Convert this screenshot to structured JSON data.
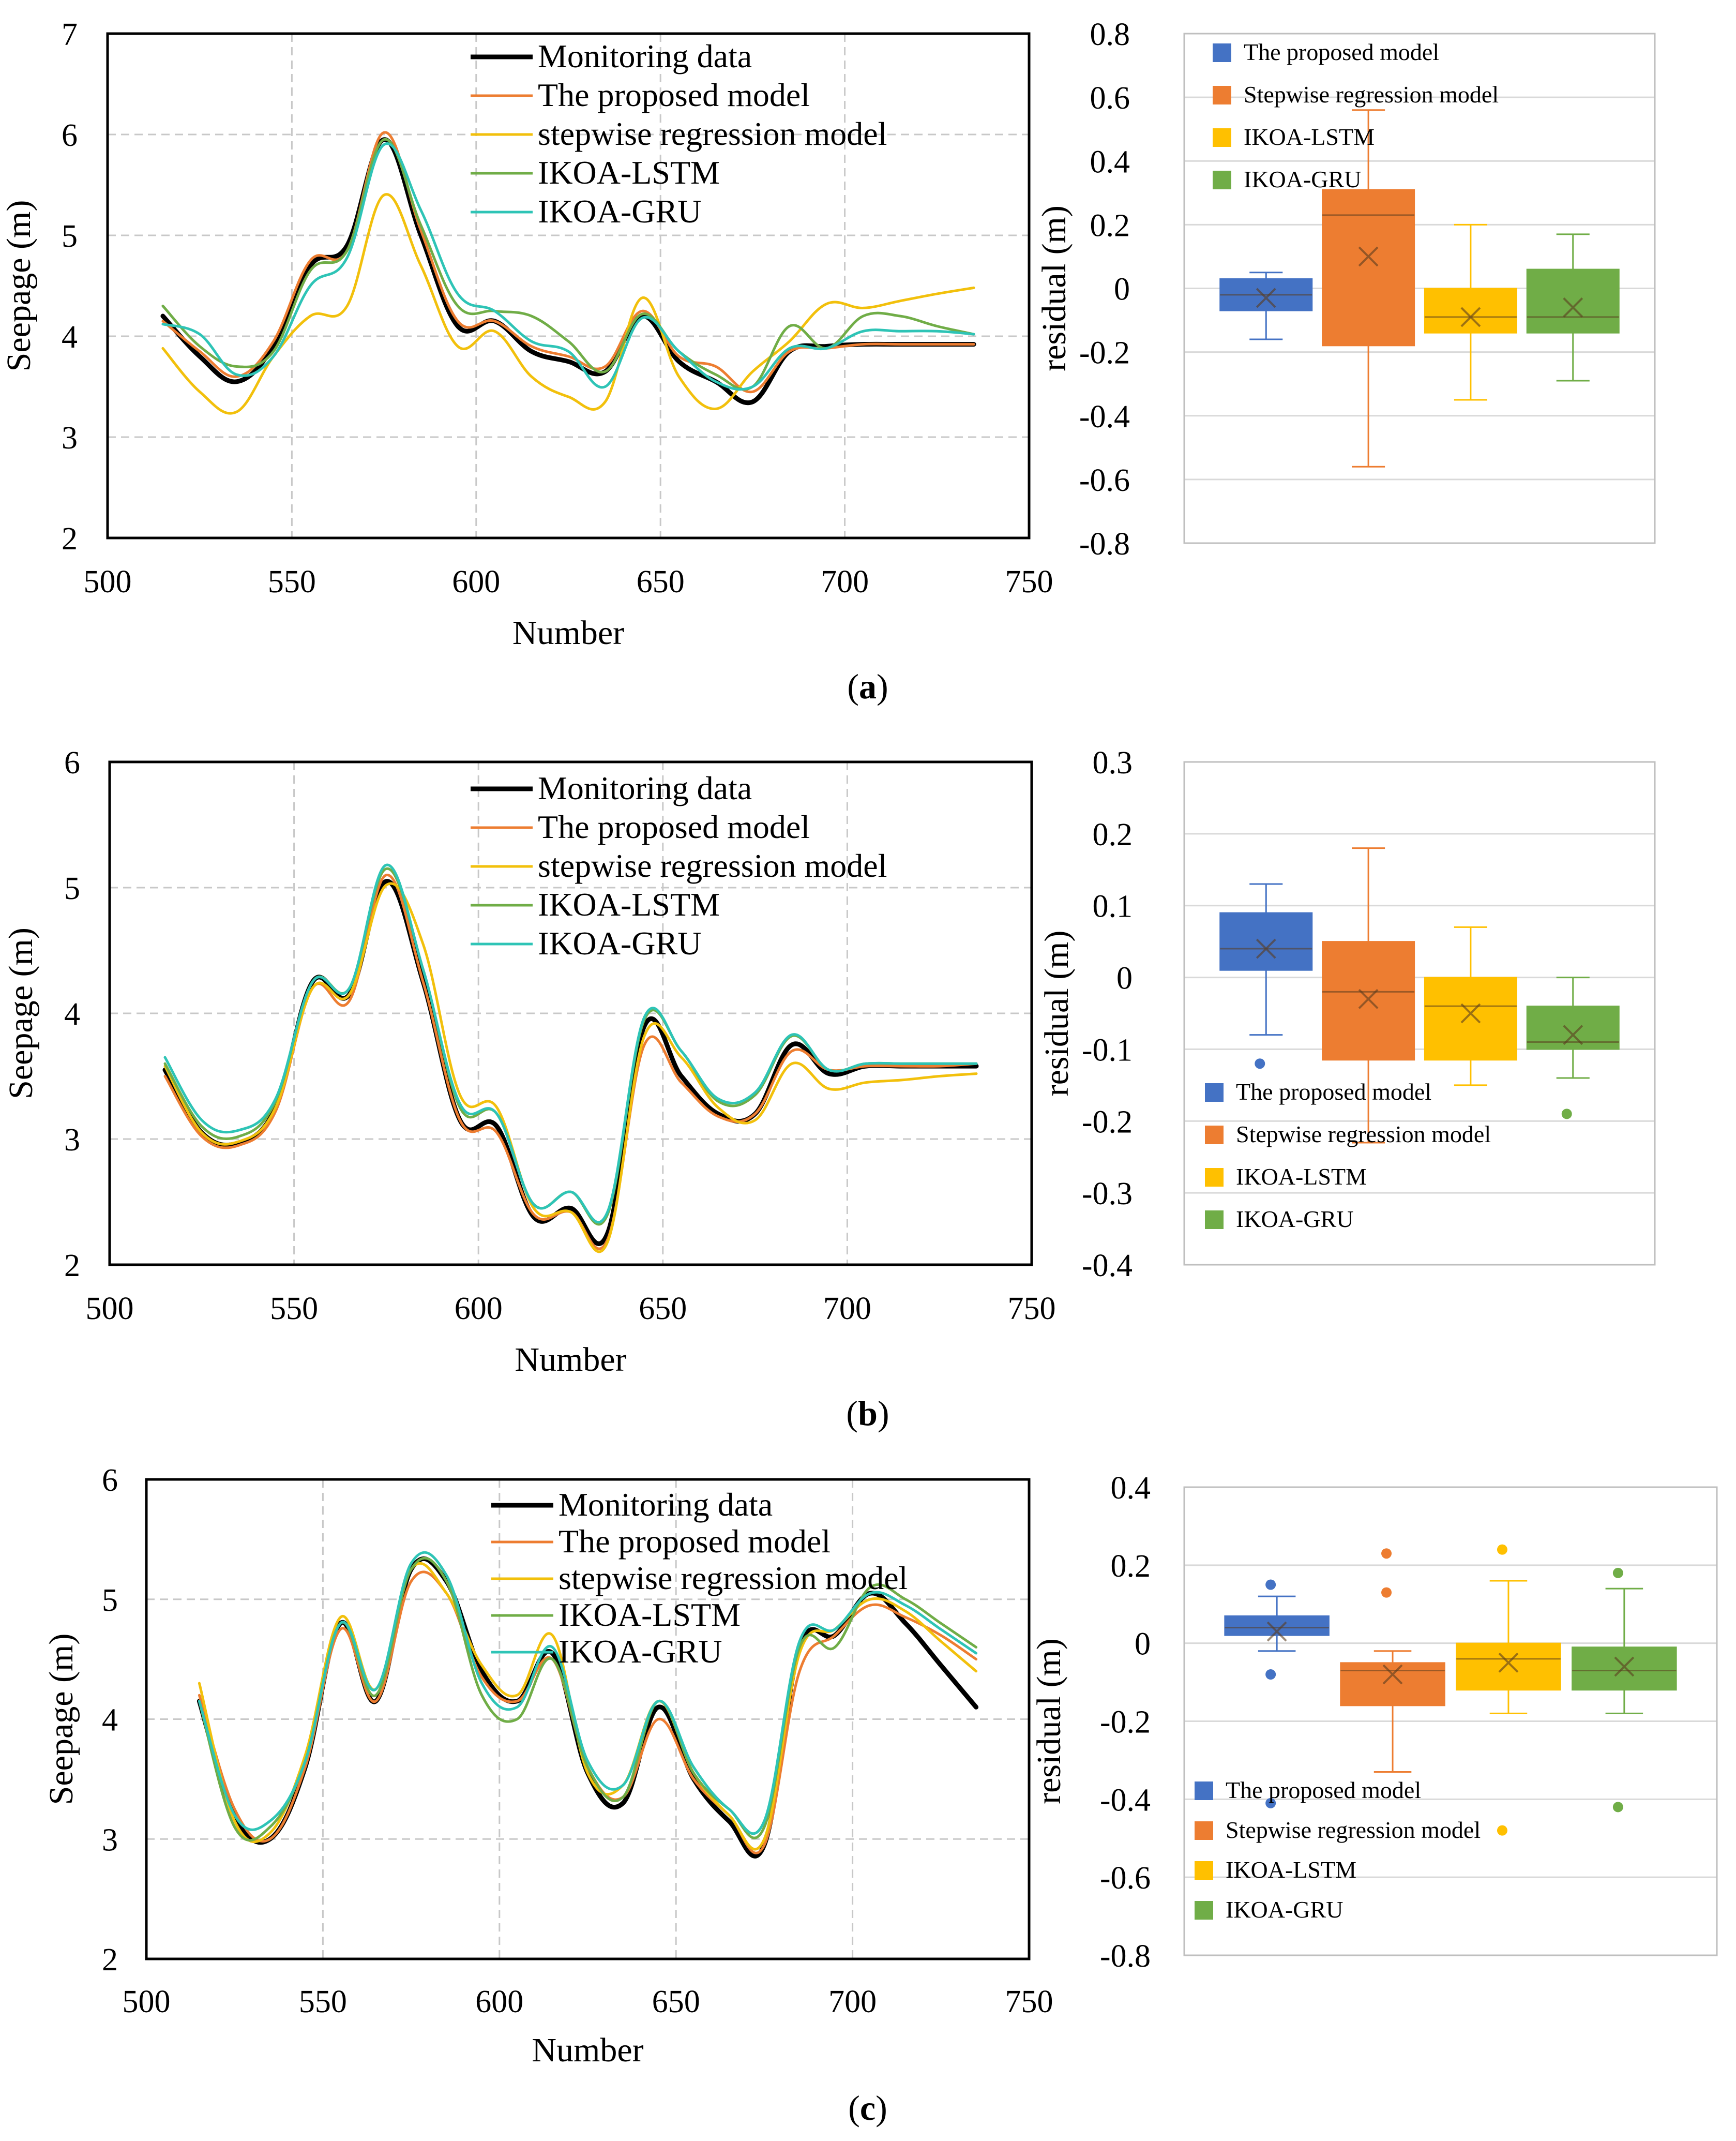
{
  "colors": {
    "monitoring": "#000000",
    "proposed": "#ED7D31",
    "stepwise": "#F2C00C",
    "lstm": "#70AD47",
    "gru": "#2EC4B6",
    "box_proposed": "#4472C4",
    "box_stepwise": "#ED7D31",
    "box_lstm": "#FFC000",
    "box_gru": "#70AD47"
  },
  "captions": [
    "(a)",
    "(b)",
    "(c)"
  ],
  "chart_data": [
    {
      "id": "a-line",
      "type": "line",
      "xlabel": "Number",
      "ylabel": "Seepage (m)",
      "xlim": [
        500,
        750
      ],
      "ylim": [
        2,
        7
      ],
      "xticks": [
        "500",
        "550",
        "600",
        "650",
        "700",
        "750"
      ],
      "yticks": [
        "2",
        "3",
        "4",
        "5",
        "6",
        "7"
      ],
      "legend_position": "top-right",
      "x": [
        515,
        525,
        535,
        545,
        555,
        565,
        575,
        585,
        595,
        605,
        615,
        625,
        635,
        645,
        655,
        665,
        675,
        685,
        695,
        705,
        715,
        725,
        735
      ],
      "series": [
        {
          "name": "Monitoring data",
          "key": "monitoring",
          "values": [
            4.2,
            3.8,
            3.55,
            3.9,
            4.7,
            4.9,
            5.95,
            5.0,
            4.1,
            4.15,
            3.85,
            3.75,
            3.65,
            4.2,
            3.75,
            3.55,
            3.35,
            3.85,
            3.9,
            3.92,
            3.92,
            3.92,
            3.92
          ]
        },
        {
          "name": "The proposed model",
          "key": "proposed",
          "values": [
            4.15,
            3.85,
            3.6,
            3.95,
            4.75,
            4.85,
            6.02,
            5.05,
            4.15,
            4.15,
            3.9,
            3.8,
            3.7,
            4.25,
            3.8,
            3.7,
            3.45,
            3.85,
            3.88,
            3.92,
            3.92,
            3.92,
            3.92
          ]
        },
        {
          "name": "stepwise regression model",
          "key": "stepwise",
          "values": [
            3.88,
            3.45,
            3.25,
            3.8,
            4.2,
            4.3,
            5.4,
            4.7,
            3.9,
            4.05,
            3.6,
            3.4,
            3.35,
            4.38,
            3.6,
            3.28,
            3.65,
            3.95,
            4.32,
            4.28,
            4.35,
            4.42,
            4.48
          ]
        },
        {
          "name": "IKOA-LSTM",
          "key": "lstm",
          "values": [
            4.3,
            3.9,
            3.7,
            3.85,
            4.65,
            4.85,
            5.95,
            5.1,
            4.3,
            4.25,
            4.2,
            3.95,
            3.65,
            4.22,
            3.85,
            3.62,
            3.5,
            4.1,
            3.88,
            4.2,
            4.2,
            4.1,
            4.02
          ]
        },
        {
          "name": "IKOA-GRU",
          "key": "gru",
          "values": [
            4.12,
            4.02,
            3.62,
            3.8,
            4.5,
            4.78,
            5.9,
            5.25,
            4.42,
            4.25,
            3.95,
            3.85,
            3.5,
            4.18,
            3.85,
            3.55,
            3.5,
            3.88,
            3.88,
            4.05,
            4.05,
            4.05,
            4.02
          ]
        }
      ]
    },
    {
      "id": "a-box",
      "type": "box",
      "ylabel": "residual (m)",
      "ylim": [
        -0.8,
        0.8
      ],
      "yticks": [
        "0.8",
        "0.6",
        "0.4",
        "0.2",
        "0",
        "-0.2",
        "-0.4",
        "-0.6",
        "-0.8"
      ],
      "legend_position": "top-left",
      "boxes": [
        {
          "name": "The proposed model",
          "key": "box_proposed",
          "min": -0.16,
          "q1": -0.07,
          "median": -0.02,
          "q3": 0.03,
          "max": 0.05,
          "mean": -0.03,
          "outliers": []
        },
        {
          "name": "Stepwise regression model",
          "key": "box_stepwise",
          "min": -0.56,
          "q1": -0.18,
          "median": 0.23,
          "q3": 0.31,
          "max": 0.56,
          "mean": 0.1,
          "outliers": []
        },
        {
          "name": "IKOA-LSTM",
          "key": "box_lstm",
          "min": -0.35,
          "q1": -0.14,
          "median": -0.09,
          "q3": 0.0,
          "max": 0.2,
          "mean": -0.09,
          "outliers": []
        },
        {
          "name": "IKOA-GRU",
          "key": "box_gru",
          "min": -0.29,
          "q1": -0.14,
          "median": -0.09,
          "q3": 0.06,
          "max": 0.17,
          "mean": -0.06,
          "outliers": []
        }
      ]
    },
    {
      "id": "b-line",
      "type": "line",
      "xlabel": "Number",
      "ylabel": "Seepage (m)",
      "xlim": [
        500,
        750
      ],
      "ylim": [
        2,
        6
      ],
      "xticks": [
        "500",
        "550",
        "600",
        "650",
        "700",
        "750"
      ],
      "yticks": [
        "2",
        "3",
        "4",
        "5",
        "6"
      ],
      "legend_position": "top-right",
      "x": [
        515,
        525,
        535,
        545,
        555,
        565,
        575,
        585,
        595,
        605,
        615,
        625,
        635,
        645,
        655,
        665,
        675,
        685,
        695,
        705,
        715,
        725,
        735
      ],
      "series": [
        {
          "name": "Monitoring data",
          "key": "monitoring",
          "values": [
            3.55,
            3.05,
            2.97,
            3.25,
            4.25,
            4.15,
            5.05,
            4.25,
            3.15,
            3.1,
            2.38,
            2.45,
            2.25,
            3.9,
            3.5,
            3.2,
            3.2,
            3.75,
            3.52,
            3.58,
            3.58,
            3.58,
            3.58
          ]
        },
        {
          "name": "The proposed model",
          "key": "proposed",
          "values": [
            3.5,
            3.02,
            2.95,
            3.22,
            4.2,
            4.1,
            5.1,
            4.25,
            3.15,
            3.05,
            2.4,
            2.42,
            2.2,
            3.75,
            3.45,
            3.18,
            3.2,
            3.7,
            3.55,
            3.58,
            3.58,
            3.58,
            3.6
          ]
        },
        {
          "name": "stepwise regression model",
          "key": "stepwise",
          "values": [
            3.58,
            3.05,
            2.98,
            3.25,
            4.2,
            4.15,
            5.02,
            4.55,
            3.35,
            3.25,
            2.45,
            2.42,
            2.18,
            3.82,
            3.65,
            3.25,
            3.15,
            3.6,
            3.4,
            3.45,
            3.47,
            3.5,
            3.52
          ]
        },
        {
          "name": "IKOA-LSTM",
          "key": "lstm",
          "values": [
            3.6,
            3.1,
            3.02,
            3.3,
            4.25,
            4.2,
            5.15,
            4.35,
            3.25,
            3.2,
            2.48,
            2.58,
            2.4,
            3.95,
            3.7,
            3.3,
            3.35,
            3.82,
            3.55,
            3.6,
            3.6,
            3.6,
            3.6
          ]
        },
        {
          "name": "IKOA-GRU",
          "key": "gru",
          "values": [
            3.65,
            3.15,
            3.07,
            3.32,
            4.25,
            4.2,
            5.18,
            4.35,
            3.28,
            3.2,
            2.48,
            2.58,
            2.42,
            3.97,
            3.7,
            3.32,
            3.37,
            3.83,
            3.55,
            3.6,
            3.6,
            3.6,
            3.6
          ]
        }
      ]
    },
    {
      "id": "b-box",
      "type": "box",
      "ylabel": "residual (m)",
      "ylim": [
        -0.4,
        0.3
      ],
      "yticks": [
        "0.3",
        "0.2",
        "0.1",
        "0",
        "-0.1",
        "-0.2",
        "-0.3",
        "-0.4"
      ],
      "legend_position": "bottom-left",
      "boxes": [
        {
          "name": "The proposed model",
          "key": "box_proposed",
          "min": -0.08,
          "q1": 0.01,
          "median": 0.04,
          "q3": 0.09,
          "max": 0.13,
          "mean": 0.04,
          "outliers": [
            -0.12
          ]
        },
        {
          "name": "Stepwise regression model",
          "key": "box_stepwise",
          "min": -0.23,
          "q1": -0.115,
          "median": -0.02,
          "q3": 0.05,
          "max": 0.18,
          "mean": -0.03,
          "outliers": []
        },
        {
          "name": "IKOA-LSTM",
          "key": "box_lstm",
          "min": -0.15,
          "q1": -0.115,
          "median": -0.04,
          "q3": 0.0,
          "max": 0.07,
          "mean": -0.05,
          "outliers": []
        },
        {
          "name": "IKOA-GRU",
          "key": "box_gru",
          "min": -0.14,
          "q1": -0.1,
          "median": -0.09,
          "q3": -0.04,
          "max": 0.0,
          "mean": -0.08,
          "outliers": [
            -0.19
          ]
        }
      ]
    },
    {
      "id": "c-line",
      "type": "line",
      "xlabel": "Number",
      "ylabel": "Seepage (m)",
      "xlim": [
        500,
        750
      ],
      "ylim": [
        2,
        6
      ],
      "xticks": [
        "500",
        "550",
        "600",
        "650",
        "700",
        "750"
      ],
      "yticks": [
        "2",
        "3",
        "4",
        "5",
        "6"
      ],
      "legend_position": "top-right",
      "x": [
        515,
        525,
        535,
        545,
        555,
        565,
        575,
        585,
        595,
        605,
        615,
        625,
        635,
        645,
        655,
        665,
        675,
        685,
        695,
        705,
        715,
        725,
        735
      ],
      "series": [
        {
          "name": "Monitoring data",
          "key": "monitoring",
          "values": [
            4.15,
            3.2,
            3.0,
            3.6,
            4.8,
            4.15,
            5.25,
            5.15,
            4.4,
            4.15,
            4.55,
            3.55,
            3.3,
            4.1,
            3.5,
            3.15,
            2.95,
            4.6,
            4.7,
            5.05,
            4.8,
            4.45,
            4.1
          ]
        },
        {
          "name": "The proposed model",
          "key": "proposed",
          "values": [
            4.2,
            3.25,
            3.0,
            3.6,
            4.75,
            4.15,
            5.15,
            5.05,
            4.35,
            4.15,
            4.5,
            3.6,
            3.35,
            4.0,
            3.5,
            3.2,
            2.95,
            4.4,
            4.7,
            4.95,
            4.85,
            4.7,
            4.5
          ]
        },
        {
          "name": "stepwise regression model",
          "key": "stepwise",
          "values": [
            4.3,
            3.15,
            3.05,
            3.7,
            4.85,
            4.25,
            5.25,
            5.05,
            4.45,
            4.2,
            4.7,
            3.55,
            3.45,
            4.15,
            3.55,
            3.2,
            3.0,
            4.55,
            4.75,
            5.0,
            4.9,
            4.65,
            4.4
          ]
        },
        {
          "name": "IKOA-LSTM",
          "key": "lstm",
          "values": [
            4.15,
            3.1,
            3.1,
            3.65,
            4.8,
            4.2,
            5.25,
            5.15,
            4.2,
            4.0,
            4.5,
            3.6,
            3.35,
            4.15,
            3.55,
            3.25,
            3.1,
            4.6,
            4.6,
            5.1,
            5.0,
            4.8,
            4.6
          ]
        },
        {
          "name": "IKOA-GRU",
          "key": "gru",
          "values": [
            4.15,
            3.2,
            3.15,
            3.65,
            4.8,
            4.25,
            5.3,
            5.2,
            4.3,
            4.1,
            4.6,
            3.65,
            3.45,
            4.15,
            3.6,
            3.25,
            3.15,
            4.65,
            4.75,
            5.05,
            4.95,
            4.75,
            4.55
          ]
        }
      ]
    },
    {
      "id": "c-box",
      "type": "box",
      "ylabel": "residual (m)",
      "ylim": [
        -0.8,
        0.4
      ],
      "yticks": [
        "0.4",
        "0.2",
        "0",
        "-0.2",
        "-0.4",
        "-0.6",
        "-0.8"
      ],
      "legend_position": "bottom-left",
      "boxes": [
        {
          "name": "The proposed model",
          "key": "box_proposed",
          "min": -0.02,
          "q1": 0.02,
          "median": 0.04,
          "q3": 0.07,
          "max": 0.12,
          "mean": 0.03,
          "outliers": [
            0.15,
            -0.08,
            -0.41
          ]
        },
        {
          "name": "Stepwise regression model",
          "key": "box_stepwise",
          "min": -0.33,
          "q1": -0.16,
          "median": -0.07,
          "q3": -0.05,
          "max": -0.02,
          "mean": -0.08,
          "outliers": [
            0.23,
            0.13
          ]
        },
        {
          "name": "IKOA-LSTM",
          "key": "box_lstm",
          "min": -0.18,
          "q1": -0.12,
          "median": -0.04,
          "q3": 0.0,
          "max": 0.16,
          "mean": -0.05,
          "outliers": [
            0.24,
            -0.48
          ]
        },
        {
          "name": "IKOA-GRU",
          "key": "box_gru",
          "min": -0.18,
          "q1": -0.12,
          "median": -0.07,
          "q3": -0.01,
          "max": 0.14,
          "mean": -0.06,
          "outliers": [
            0.18,
            -0.42
          ]
        }
      ]
    }
  ]
}
